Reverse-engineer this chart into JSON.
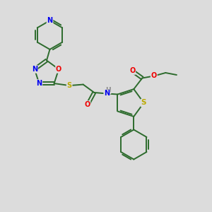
{
  "background_color": "#dcdcdc",
  "bond_color": "#2d6b2d",
  "bond_width": 1.4,
  "atom_colors": {
    "N": "#0000ee",
    "O": "#ee0000",
    "S": "#bbaa00",
    "C": "#2d6b2d"
  },
  "figsize": [
    3.0,
    3.0
  ],
  "dpi": 100,
  "xlim": [
    0,
    10
  ],
  "ylim": [
    0,
    10
  ]
}
